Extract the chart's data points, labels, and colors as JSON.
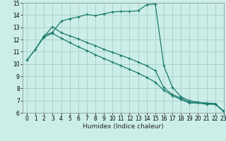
{
  "title": "",
  "xlabel": "Humidex (Indice chaleur)",
  "ylabel": "",
  "xlim": [
    -0.5,
    23
  ],
  "ylim": [
    6,
    15
  ],
  "xticks": [
    0,
    1,
    2,
    3,
    4,
    5,
    6,
    7,
    8,
    9,
    10,
    11,
    12,
    13,
    14,
    15,
    16,
    17,
    18,
    19,
    20,
    21,
    22,
    23
  ],
  "yticks": [
    6,
    7,
    8,
    9,
    10,
    11,
    12,
    13,
    14,
    15
  ],
  "background_color": "#cceee8",
  "grid_color": "#aad4cc",
  "line_color": "#1a7a6e",
  "line1_x": [
    0,
    1,
    2,
    3,
    4,
    5,
    6,
    7,
    8,
    9,
    10,
    11,
    12,
    13,
    14,
    15,
    16,
    17,
    18,
    19,
    20,
    21,
    22,
    23
  ],
  "line1_y": [
    10.3,
    11.2,
    12.3,
    12.6,
    13.5,
    13.7,
    13.85,
    14.05,
    13.95,
    14.1,
    14.25,
    14.3,
    14.3,
    14.35,
    14.85,
    14.9,
    9.85,
    8.1,
    7.3,
    7.0,
    6.85,
    6.8,
    6.75,
    6.1
  ],
  "line2_x": [
    2,
    3,
    4,
    5,
    6,
    7,
    8,
    9,
    10,
    11,
    12,
    13,
    14,
    15,
    16,
    17,
    18,
    19,
    20,
    21,
    22,
    23
  ],
  "line2_y": [
    12.25,
    13.05,
    12.55,
    12.3,
    12.05,
    11.75,
    11.5,
    11.2,
    10.95,
    10.7,
    10.45,
    10.15,
    9.85,
    9.45,
    8.05,
    7.5,
    7.2,
    6.85,
    6.85,
    6.75,
    6.7,
    6.15
  ],
  "line3_x": [
    0,
    1,
    2,
    3,
    4,
    5,
    6,
    7,
    8,
    9,
    10,
    11,
    12,
    13,
    14,
    15,
    16,
    17,
    18,
    19,
    20,
    21,
    22,
    23
  ],
  "line3_y": [
    10.3,
    11.2,
    12.2,
    12.5,
    12.1,
    11.75,
    11.4,
    11.1,
    10.75,
    10.45,
    10.15,
    9.85,
    9.55,
    9.25,
    8.9,
    8.5,
    7.85,
    7.4,
    7.1,
    6.8,
    6.8,
    6.7,
    6.7,
    6.1
  ],
  "xlabel_fontsize": 6.5,
  "tick_fontsize": 5.5,
  "linewidth": 0.9,
  "markersize": 2.5,
  "markeredgewidth": 0.8
}
